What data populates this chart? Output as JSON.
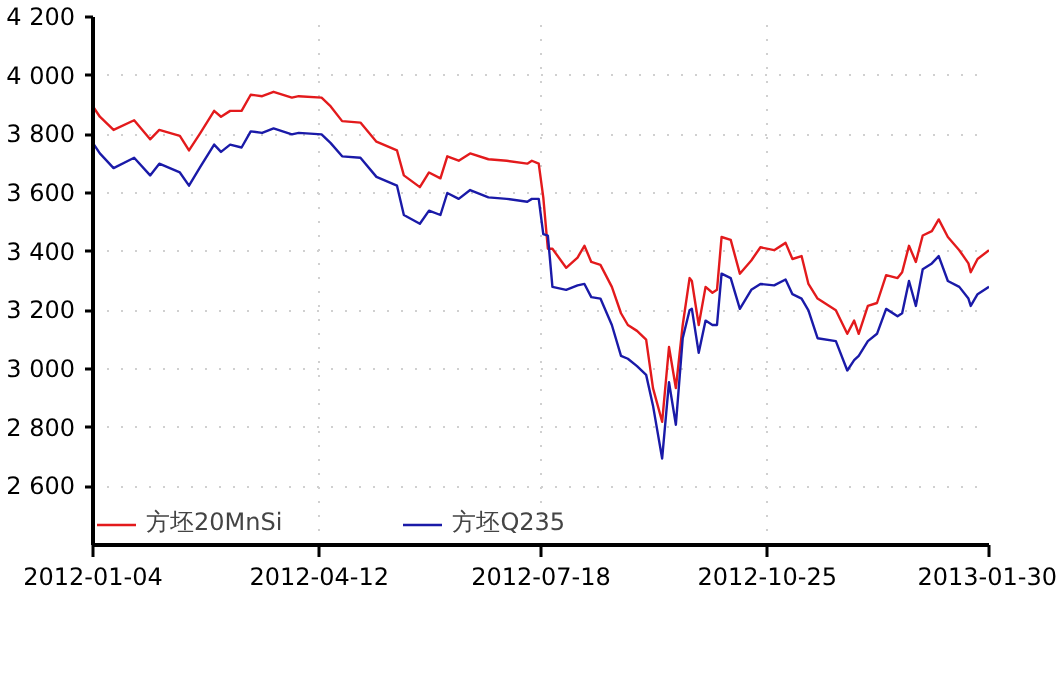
{
  "chart_data": {
    "type": "line",
    "x": [
      "2012-01-04",
      "2012-01-07",
      "2012-01-13",
      "2012-01-22",
      "2012-01-29",
      "2012-02-02",
      "2012-02-11",
      "2012-02-15",
      "2012-02-20",
      "2012-02-26",
      "2012-02-29",
      "2012-03-04",
      "2012-03-09",
      "2012-03-13",
      "2012-03-18",
      "2012-03-23",
      "2012-03-31",
      "2012-04-03",
      "2012-04-13",
      "2012-04-17",
      "2012-04-22",
      "2012-04-30",
      "2012-05-07",
      "2012-05-16",
      "2012-05-19",
      "2012-05-26",
      "2012-05-30",
      "2012-06-04",
      "2012-06-07",
      "2012-06-12",
      "2012-06-17",
      "2012-06-25",
      "2012-07-03",
      "2012-07-12",
      "2012-07-14",
      "2012-07-17",
      "2012-07-19",
      "2012-07-21",
      "2012-07-23",
      "2012-07-29",
      "2012-08-03",
      "2012-08-06",
      "2012-08-09",
      "2012-08-13",
      "2012-08-18",
      "2012-08-22",
      "2012-08-25",
      "2012-08-29",
      "2012-09-02",
      "2012-09-05",
      "2012-09-09",
      "2012-09-12",
      "2012-09-15",
      "2012-09-18",
      "2012-09-21",
      "2012-09-22",
      "2012-09-25",
      "2012-09-28",
      "2012-10-01",
      "2012-10-03",
      "2012-10-05",
      "2012-10-09",
      "2012-10-13",
      "2012-10-18",
      "2012-10-22",
      "2012-10-28",
      "2012-11-02",
      "2012-11-05",
      "2012-11-09",
      "2012-11-12",
      "2012-11-16",
      "2012-11-24",
      "2012-11-29",
      "2012-12-02",
      "2012-12-04",
      "2012-12-08",
      "2012-12-12",
      "2012-12-16",
      "2012-12-21",
      "2012-12-23",
      "2012-12-26",
      "2012-12-29",
      "2013-01-01",
      "2013-01-05",
      "2013-01-08",
      "2013-01-12",
      "2013-01-17",
      "2013-01-21",
      "2013-01-22",
      "2013-01-25",
      "2013-01-30"
    ],
    "series": [
      {
        "name": "方坯20MnSi",
        "color": "#e31a1c",
        "values": [
          3895,
          3860,
          3815,
          3848,
          3783,
          3815,
          3795,
          3745,
          3805,
          3880,
          3860,
          3880,
          3880,
          3935,
          3930,
          3945,
          3925,
          3930,
          3925,
          3895,
          3845,
          3840,
          3775,
          3745,
          3660,
          3620,
          3670,
          3650,
          3725,
          3710,
          3735,
          3715,
          3710,
          3700,
          3710,
          3700,
          3585,
          3410,
          3410,
          3345,
          3380,
          3420,
          3365,
          3355,
          3280,
          3190,
          3150,
          3130,
          3100,
          2935,
          2820,
          3075,
          2935,
          3150,
          3310,
          3300,
          3150,
          3280,
          3260,
          3270,
          3450,
          3440,
          3325,
          3370,
          3415,
          3405,
          3430,
          3375,
          3385,
          3290,
          3240,
          3200,
          3120,
          3165,
          3120,
          3215,
          3225,
          3320,
          3310,
          3330,
          3420,
          3365,
          3455,
          3470,
          3510,
          3450,
          3405,
          3360,
          3330,
          3375,
          3405
        ]
      },
      {
        "name": "方坯Q235",
        "color": "#1a1aa8",
        "values": [
          3770,
          3735,
          3685,
          3720,
          3660,
          3700,
          3670,
          3625,
          3690,
          3765,
          3740,
          3765,
          3755,
          3810,
          3805,
          3820,
          3800,
          3805,
          3800,
          3770,
          3725,
          3720,
          3655,
          3625,
          3525,
          3495,
          3540,
          3525,
          3600,
          3580,
          3610,
          3585,
          3580,
          3570,
          3580,
          3580,
          3460,
          3455,
          3280,
          3270,
          3285,
          3290,
          3245,
          3240,
          3150,
          3045,
          3035,
          3010,
          2980,
          2875,
          2695,
          2955,
          2810,
          3105,
          3200,
          3205,
          3055,
          3165,
          3150,
          3150,
          3325,
          3310,
          3205,
          3270,
          3290,
          3285,
          3305,
          3255,
          3240,
          3200,
          3105,
          3095,
          2995,
          3030,
          3045,
          3095,
          3120,
          3205,
          3180,
          3190,
          3300,
          3215,
          3340,
          3360,
          3385,
          3300,
          3280,
          3240,
          3215,
          3255,
          3280
        ]
      }
    ],
    "xlim": [
      "2012-01-04",
      "2013-01-30"
    ],
    "xticks": [
      "2012-01-04",
      "2012-04-12",
      "2012-07-18",
      "2012-10-25",
      "2013-01-30"
    ],
    "ylim": [
      2400,
      4200
    ],
    "yticks": [
      {
        "value": 2600,
        "label": "2 600"
      },
      {
        "value": 2800,
        "label": "2 800"
      },
      {
        "value": 3000,
        "label": "3 000"
      },
      {
        "value": 3200,
        "label": "3 200"
      },
      {
        "value": 3400,
        "label": "3 400"
      },
      {
        "value": 3600,
        "label": "3 600"
      },
      {
        "value": 3800,
        "label": "3 800"
      },
      {
        "value": 4000,
        "label": "4 000"
      },
      {
        "value": 4200,
        "label": "4 200"
      }
    ],
    "grid": true,
    "legend": "bottom left",
    "marker": "none",
    "line_style": "solid"
  }
}
